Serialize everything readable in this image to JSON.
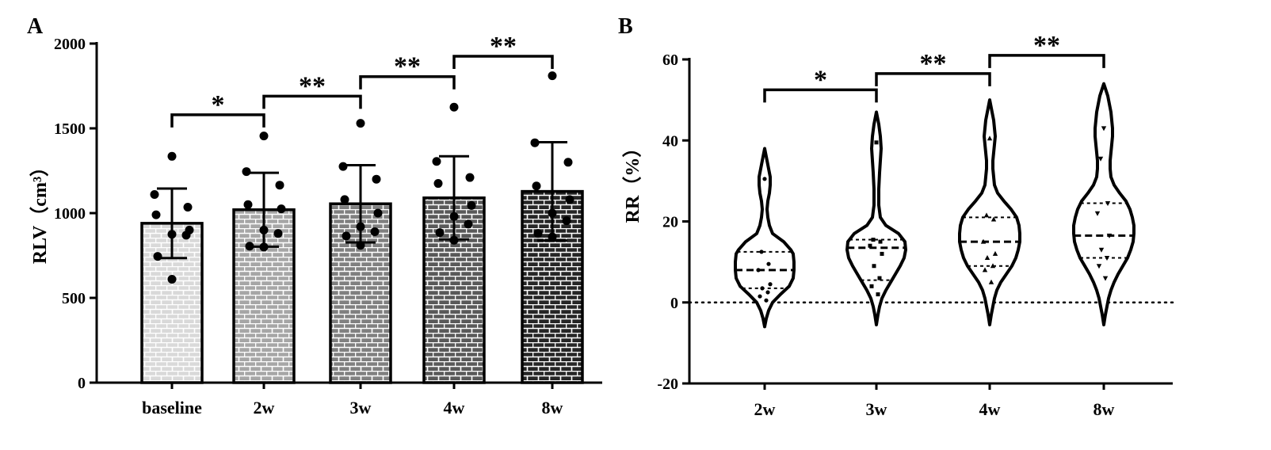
{
  "panel_a_letter": "A",
  "panel_b_letter": "B",
  "chart_data": [
    {
      "type": "bar",
      "title": "",
      "ylabel": "RLV（cm³）",
      "xlabel": "",
      "ylim": [
        0,
        2000
      ],
      "yticks": [
        "0",
        "500",
        "1000",
        "1500",
        "2000"
      ],
      "categories": [
        "baseline",
        "2w",
        "3w",
        "4w",
        "8w"
      ],
      "values": [
        940,
        1020,
        1055,
        1090,
        1128
      ],
      "sd": [
        205,
        218,
        228,
        245,
        290
      ],
      "points": [
        [
          1335,
          1110,
          1035,
          990,
          900,
          875,
          870,
          745,
          610
        ],
        [
          1455,
          1245,
          1165,
          1050,
          1025,
          900,
          880,
          805,
          800
        ],
        [
          1530,
          1275,
          1200,
          1080,
          1000,
          920,
          890,
          865,
          810
        ],
        [
          1625,
          1305,
          1210,
          1175,
          1045,
          980,
          935,
          885,
          840
        ],
        [
          1810,
          1415,
          1300,
          1160,
          1080,
          1000,
          955,
          880,
          860
        ]
      ],
      "bar_fills": [
        "#d9d9d9",
        "#a6a6a6",
        "#808080",
        "#595959",
        "#262626"
      ],
      "significance": [
        {
          "from": 0,
          "to": 1,
          "label": "*"
        },
        {
          "from": 1,
          "to": 2,
          "label": "**"
        },
        {
          "from": 2,
          "to": 3,
          "label": "**"
        },
        {
          "from": 3,
          "to": 4,
          "label": "**"
        }
      ]
    },
    {
      "type": "violin",
      "title": "",
      "ylabel": "RR（%）",
      "xlabel": "",
      "ylim": [
        -20,
        60
      ],
      "yticks": [
        "-20",
        "0",
        "20",
        "40",
        "60"
      ],
      "categories": [
        "2w",
        "3w",
        "4w",
        "8w"
      ],
      "quartiles": [
        {
          "q1": 3.5,
          "median": 8,
          "q3": 12.5
        },
        {
          "q1": 5.5,
          "median": 13.5,
          "q3": 15.5
        },
        {
          "q1": 9,
          "median": 15,
          "q3": 21
        },
        {
          "q1": 11,
          "median": 16.5,
          "q3": 24.5
        }
      ],
      "points": [
        [
          30.5,
          12.5,
          9.5,
          8,
          4.5,
          3.5,
          2.5,
          1.5,
          0.5
        ],
        [
          39.5,
          15.5,
          15,
          14,
          12,
          9,
          6,
          4,
          2
        ],
        [
          40.5,
          21.5,
          20.5,
          15,
          12,
          11,
          9,
          8,
          5
        ],
        [
          43,
          35.5,
          24.5,
          22,
          16.5,
          13,
          11,
          9,
          6
        ]
      ],
      "point_markers": [
        "circle",
        "square",
        "triangle-up",
        "triangle-down"
      ],
      "reference_line": 0,
      "significance": [
        {
          "from": 0,
          "to": 1,
          "label": "*"
        },
        {
          "from": 1,
          "to": 2,
          "label": "**"
        },
        {
          "from": 2,
          "to": 3,
          "label": "**"
        }
      ]
    }
  ]
}
